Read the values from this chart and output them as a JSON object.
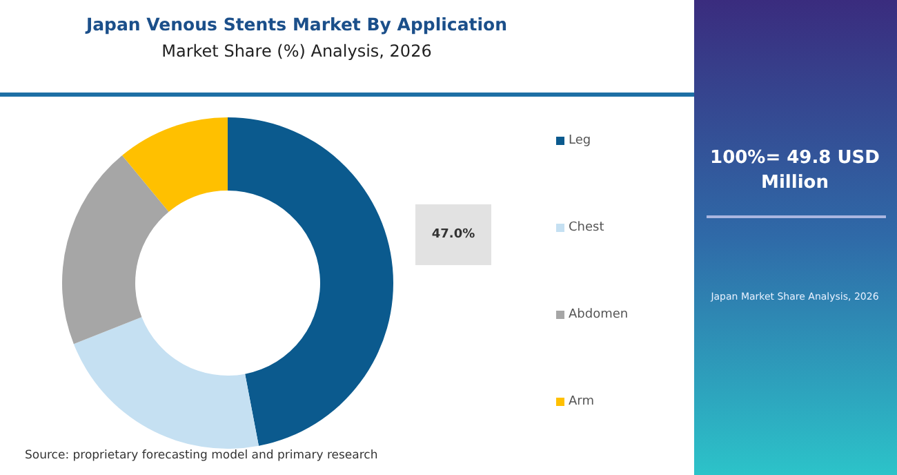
{
  "chart_data": {
    "type": "donut",
    "title": "Japan Venous Stents Market By Application",
    "subtitle": "Market Share (%) Analysis, 2026",
    "categories": [
      "Leg",
      "Chest",
      "Abdomen",
      "Arm"
    ],
    "values": [
      47,
      22,
      20,
      11
    ],
    "value_labels": [
      "47.0%",
      null,
      null,
      null
    ],
    "colors": [
      "#0b5a8e",
      "#c5e0f2",
      "#a6a6a6",
      "#ffc000"
    ],
    "legend": "right",
    "annotations": [
      "100%= 49.8 USD Million",
      "Japan Market Share Analysis, 2026",
      "Source: proprietary forecasting model and primary research"
    ]
  }
}
